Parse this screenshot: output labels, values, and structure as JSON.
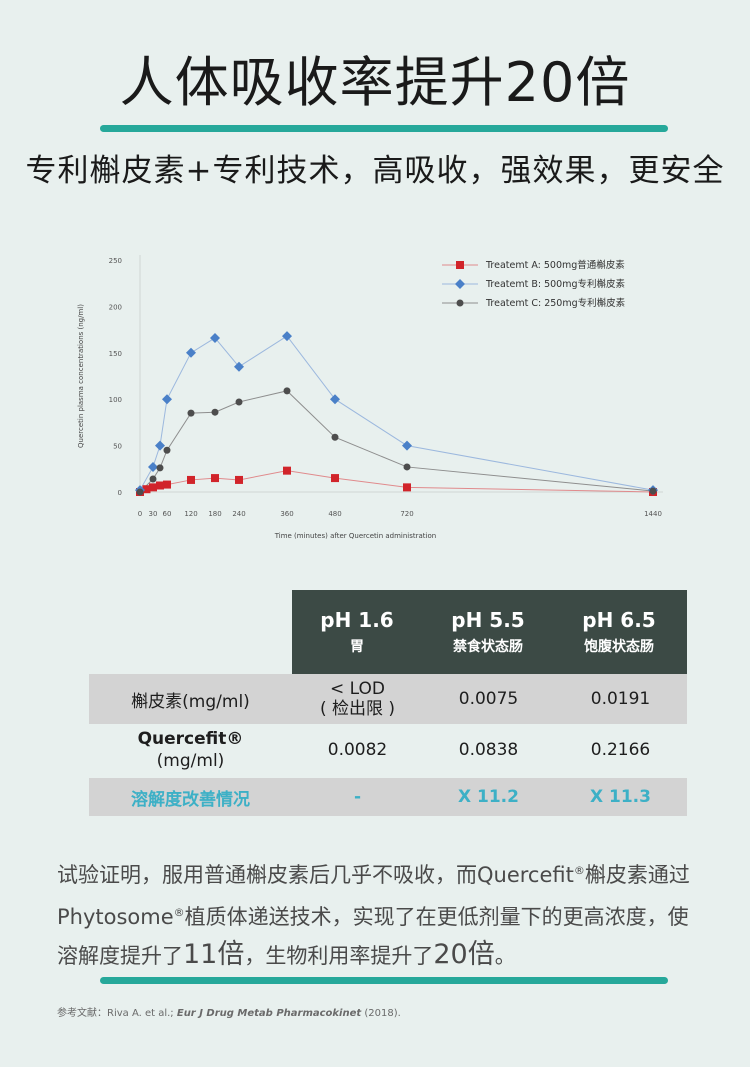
{
  "header": {
    "title": "人体吸收率提升20倍",
    "subtitle": "专利槲皮素+专利技术，高吸收，强效果，更安全"
  },
  "colors": {
    "accent": "#26a89a",
    "series_a": "#d1242a",
    "series_b": "#4a80c8",
    "series_c": "#4d4d4d",
    "table_head": "#3c4a45",
    "improve": "#3db0c6"
  },
  "chart_data": {
    "type": "line",
    "xlabel": "Time (minutes) after Quercetin administration",
    "ylabel": "Quercetin plasma concentrations (ng/ml)",
    "x_ticks": [
      0,
      30,
      60,
      120,
      180,
      240,
      360,
      480,
      720,
      1440
    ],
    "y_ticks": [
      0,
      50,
      100,
      150,
      200,
      250
    ],
    "ylim": [
      0,
      250
    ],
    "legend_position": "top-right",
    "series": [
      {
        "name": "Treatemt A: 500mg普通槲皮素",
        "marker": "square",
        "x": [
          0,
          15,
          30,
          45,
          60,
          120,
          180,
          240,
          360,
          480,
          720,
          1440
        ],
        "y": [
          0,
          3,
          5,
          7,
          8,
          13,
          15,
          13,
          23,
          15,
          5,
          0
        ]
      },
      {
        "name": "Treatemt B: 500mg专利槲皮素",
        "marker": "diamond",
        "x": [
          0,
          30,
          45,
          60,
          120,
          180,
          240,
          360,
          480,
          720,
          1440
        ],
        "y": [
          2,
          27,
          50,
          100,
          150,
          166,
          135,
          168,
          100,
          50,
          2
        ]
      },
      {
        "name": "Treatemt C: 250mg专利槲皮素",
        "marker": "circle",
        "x": [
          0,
          30,
          45,
          60,
          120,
          180,
          240,
          360,
          480,
          720,
          1440
        ],
        "y": [
          0,
          14,
          26,
          45,
          85,
          86,
          97,
          109,
          59,
          27,
          1
        ]
      }
    ]
  },
  "table": {
    "head": [
      {
        "ph": "pH 1.6",
        "label": "胃"
      },
      {
        "ph": "pH 5.5",
        "label": "禁食状态肠"
      },
      {
        "ph": "pH 6.5",
        "label": "饱腹状态肠"
      }
    ],
    "row1": {
      "label": "槲皮素(mg/ml)",
      "v1a": "< LOD",
      "v1b": "( 检出限 )",
      "v2": "0.0075",
      "v3": "0.0191"
    },
    "row2": {
      "label_a": "Quercefit®",
      "label_b": "(mg/ml)",
      "v1": "0.0082",
      "v2": "0.0838",
      "v3": "0.2166"
    },
    "row3": {
      "label": "溶解度改善情况",
      "v1": "-",
      "v2": "X 11.2",
      "v3": "X 11.3"
    }
  },
  "paragraph": {
    "line1a": "试验证明，服用普通槲皮素后几乎不吸收，而Quercefit",
    "reg1": "®",
    "line1b": "槲皮素通过",
    "line2a": "Phytosome",
    "reg2": "®",
    "line2b": "植质体递送技术，实现了在更低剂量下的更高浓度，使",
    "line3a": "溶解度提升了",
    "big1": "11倍",
    "line3b": "，生物利用率提升了",
    "big2": "20倍",
    "line3c": "。"
  },
  "reference": {
    "prefix": "参考文献：Riva A. et al.; ",
    "journal": "Eur J Drug Metab Pharmacokinet",
    "year": " (2018)."
  }
}
